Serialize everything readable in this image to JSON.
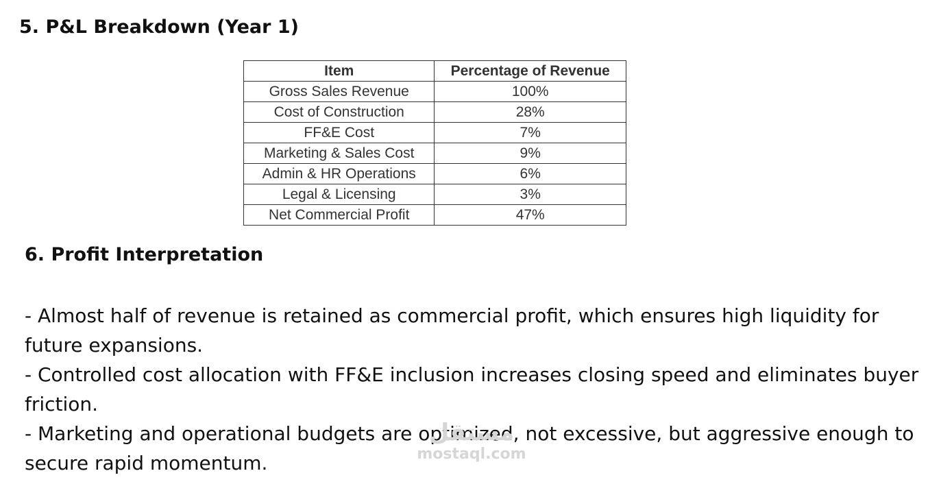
{
  "section5": {
    "title": "5. P&L Breakdown (Year 1)"
  },
  "table": {
    "headers": [
      "Item",
      "Percentage of Revenue"
    ],
    "rows": [
      [
        "Gross Sales Revenue",
        "100%"
      ],
      [
        "Cost of Construction",
        "28%"
      ],
      [
        "FF&E Cost",
        "7%"
      ],
      [
        "Marketing & Sales Cost",
        "9%"
      ],
      [
        "Admin & HR Operations",
        "6%"
      ],
      [
        "Legal & Licensing",
        "3%"
      ],
      [
        "Net Commercial Profit",
        "47%"
      ]
    ]
  },
  "section6": {
    "title": "6. Profit Interpretation",
    "bullets": [
      "- Almost half of revenue is retained as commercial profit, which ensures high liquidity for future expansions.",
      "- Controlled cost allocation with FF&E inclusion increases closing speed and eliminates buyer friction.",
      "- Marketing and operational budgets are optimized, not excessive, but aggressive enough to secure rapid momentum."
    ]
  },
  "watermark": {
    "logo": "مستقل",
    "url": "mostaql.com"
  }
}
